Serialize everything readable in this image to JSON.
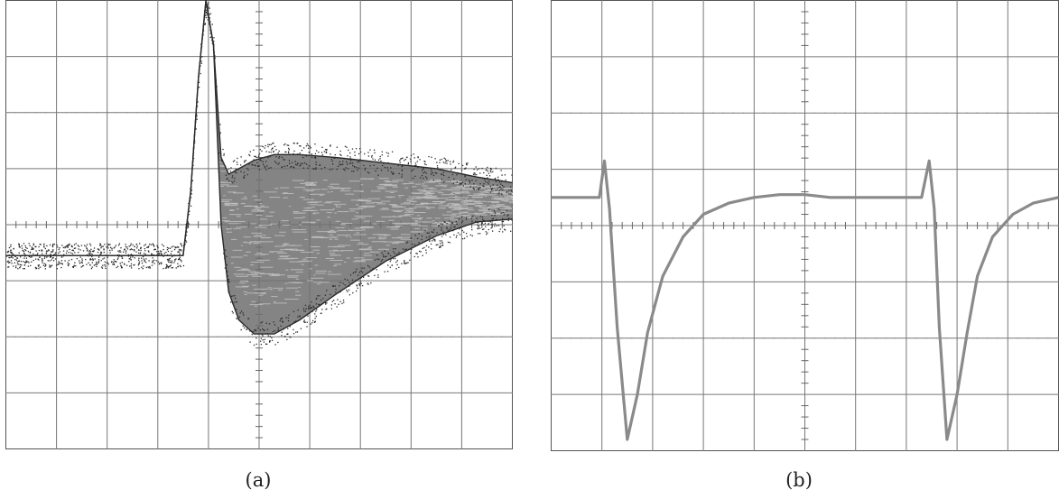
{
  "captions": {
    "a": "(a)",
    "b": "(b)"
  },
  "chart_data": [
    {
      "id": "a",
      "type": "line",
      "title": "",
      "xlabel": "",
      "ylabel": "",
      "x_divisions": 10,
      "y_divisions": 8,
      "xlim": [
        0,
        10
      ],
      "ylim": [
        -4,
        4
      ],
      "grid": true,
      "minor_ticks_on_center_axes": true,
      "trace_color": "#6e6e6e",
      "persistence_dark_color": "#2a2a2a",
      "persistence_light_color": "#c4c4c4",
      "series": [
        {
          "x": [
            0.0,
            3.5,
            3.65,
            3.8,
            3.95,
            4.1,
            4.25,
            4.4,
            4.6,
            4.9,
            5.3,
            5.8,
            6.5,
            7.5,
            8.5,
            9.3,
            10.0
          ],
          "y": [
            -0.55,
            -0.55,
            0.6,
            2.6,
            4.0,
            3.2,
            1.2,
            0.9,
            1.0,
            1.15,
            1.25,
            1.25,
            1.2,
            1.1,
            1.0,
            0.85,
            0.75
          ]
        },
        {
          "x": [
            0.0,
            3.5,
            3.65,
            3.8,
            3.95,
            4.1,
            4.25,
            4.4,
            4.6,
            4.9,
            5.3,
            5.8,
            6.5,
            7.5,
            8.5,
            9.3,
            10.0
          ],
          "y": [
            -0.55,
            -0.55,
            0.6,
            2.6,
            4.0,
            3.2,
            0.0,
            -1.2,
            -1.7,
            -1.95,
            -1.95,
            -1.7,
            -1.25,
            -0.65,
            -0.2,
            0.05,
            0.1
          ]
        }
      ]
    },
    {
      "id": "b",
      "type": "line",
      "title": "",
      "xlabel": "",
      "ylabel": "",
      "x_divisions": 10,
      "y_divisions": 8,
      "xlim": [
        0,
        10
      ],
      "ylim": [
        -4,
        4
      ],
      "grid": true,
      "minor_ticks_on_center_axes": true,
      "trace_color": "#8a8a8a",
      "series": [
        {
          "x": [
            0.0,
            0.95,
            1.05,
            1.15,
            1.3,
            1.5,
            1.7,
            1.9,
            2.2,
            2.6,
            3.0,
            3.5,
            4.0,
            4.5,
            5.0,
            5.5,
            6.0,
            6.5,
            7.0,
            7.3,
            7.45,
            7.55,
            7.65,
            7.8,
            8.0,
            8.2,
            8.4,
            8.7,
            9.1,
            9.5,
            10.0
          ],
          "y": [
            0.5,
            0.5,
            1.15,
            0.3,
            -1.8,
            -3.8,
            -3.0,
            -1.9,
            -0.9,
            -0.2,
            0.2,
            0.4,
            0.5,
            0.55,
            0.55,
            0.5,
            0.5,
            0.5,
            0.5,
            0.5,
            1.15,
            0.3,
            -1.8,
            -3.8,
            -3.0,
            -1.9,
            -0.9,
            -0.2,
            0.2,
            0.4,
            0.5
          ]
        }
      ]
    }
  ]
}
